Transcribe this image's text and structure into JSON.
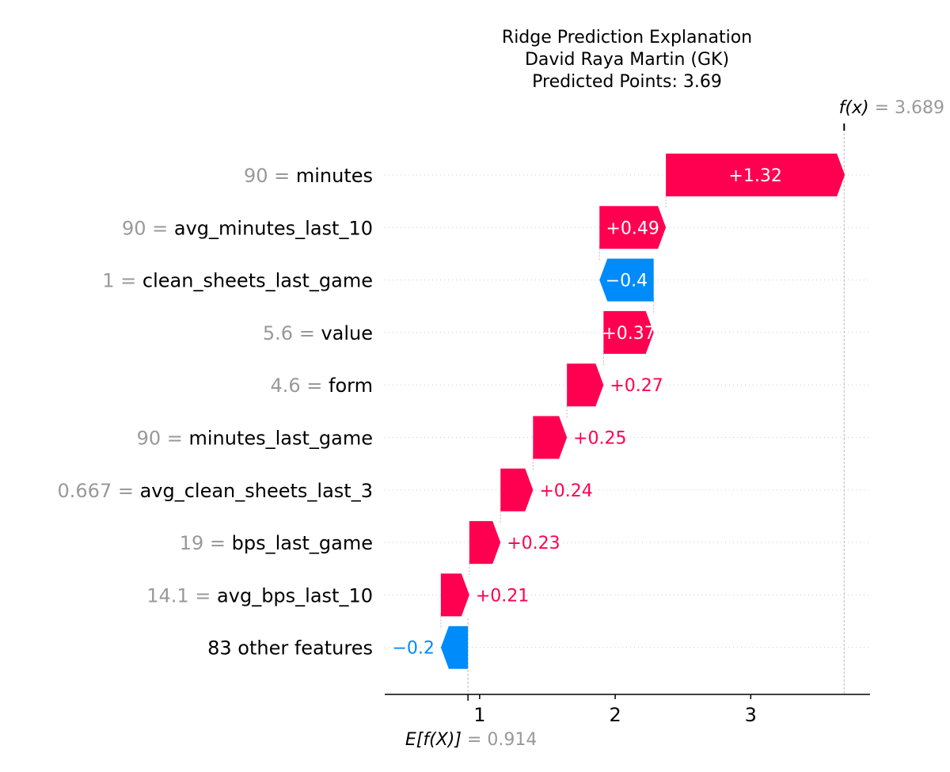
{
  "chart_data": {
    "type": "waterfall",
    "title_lines": [
      "Ridge Prediction Explanation",
      "David Raya Martin (GK)",
      "Predicted Points: 3.69"
    ],
    "base_value": 0.914,
    "base_label_name": "E[f(X)]",
    "base_label_value": "= 0.914",
    "final_value": 3.689,
    "final_label_name": "f(x)",
    "final_label_value": "= 3.689",
    "xlim": [
      0.3,
      3.88
    ],
    "xticks": [
      1,
      2,
      3
    ],
    "xtick_labels": [
      "1",
      "2",
      "3"
    ],
    "colors": {
      "positive": "#ff0051",
      "negative": "#008bfb",
      "feature_value": "#999999",
      "grid": "#cccccc"
    },
    "features": [
      {
        "value": "90 =",
        "name": "minutes",
        "contribution": 1.32,
        "label": "+1.32"
      },
      {
        "value": "90 =",
        "name": "avg_minutes_last_10",
        "contribution": 0.49,
        "label": "+0.49"
      },
      {
        "value": "1 =",
        "name": "clean_sheets_last_game",
        "contribution": -0.4,
        "label": "−0.4"
      },
      {
        "value": "5.6 =",
        "name": "value",
        "contribution": 0.37,
        "label": "+0.37"
      },
      {
        "value": "4.6 =",
        "name": "form",
        "contribution": 0.27,
        "label": "+0.27"
      },
      {
        "value": "90 =",
        "name": "minutes_last_game",
        "contribution": 0.25,
        "label": "+0.25"
      },
      {
        "value": "0.667 =",
        "name": "avg_clean_sheets_last_3",
        "contribution": 0.24,
        "label": "+0.24"
      },
      {
        "value": "19 =",
        "name": "bps_last_game",
        "contribution": 0.23,
        "label": "+0.23"
      },
      {
        "value": "14.1 =",
        "name": "avg_bps_last_10",
        "contribution": 0.21,
        "label": "+0.21"
      },
      {
        "value": "",
        "name": "83 other features",
        "contribution": -0.2,
        "label": "−0.2"
      }
    ]
  }
}
